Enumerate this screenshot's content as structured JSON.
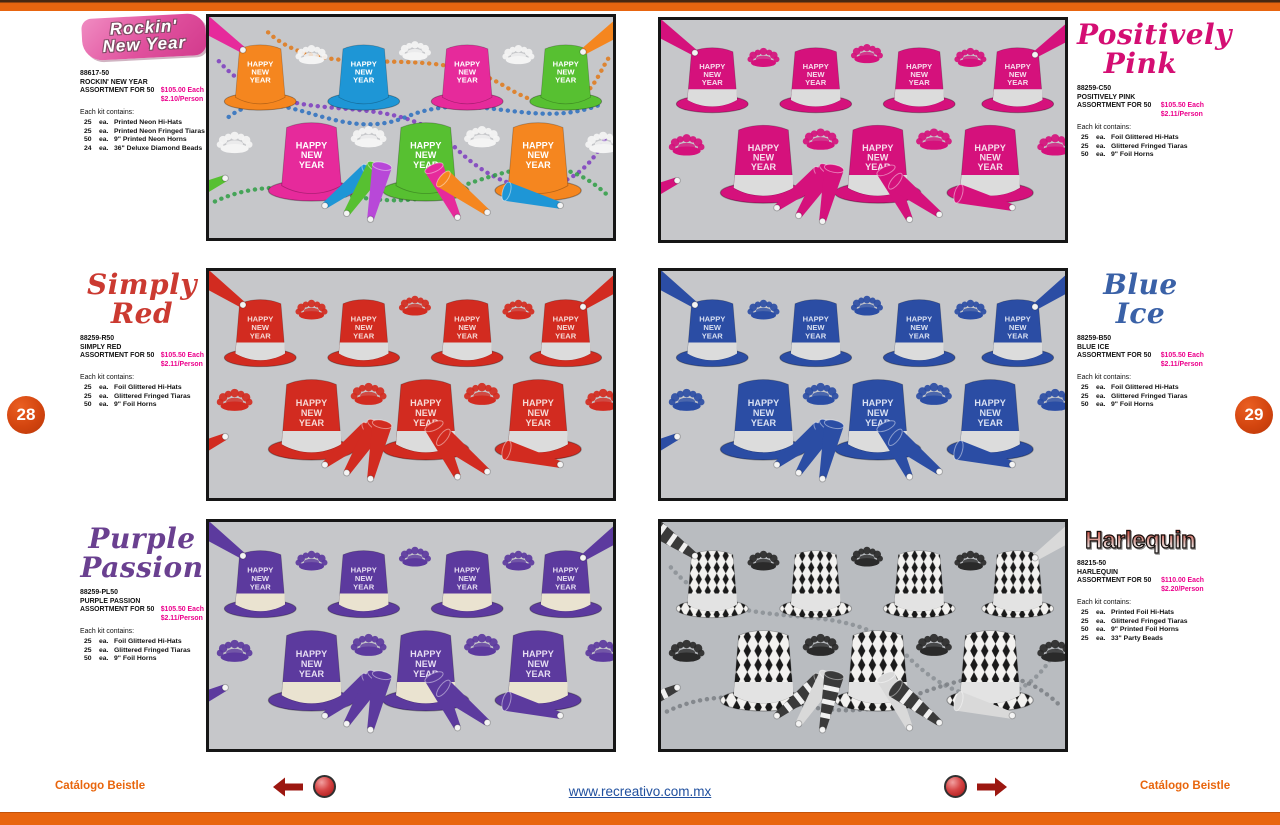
{
  "page": {
    "accent_orange": "#e8650f",
    "price_color": "#ec008c",
    "left_page_number": "28",
    "right_page_number": "29"
  },
  "footer": {
    "left_label": "Catálogo Beistle",
    "right_label": "Catálogo Beistle",
    "url": "www.recreativo.com.mx"
  },
  "kits": [
    {
      "id": "rockin-new-year",
      "title_lines": [
        "Rockin'",
        "New Year"
      ],
      "title_color": "#e0509d",
      "code": "88617-50",
      "name": "ROCKIN' NEW YEAR",
      "assortment": "ASSORTMENT FOR 50",
      "price_each": "$105.00 Each",
      "price_person": "$2.10/Person",
      "contains_label": "Each kit contains:",
      "items": [
        {
          "qty": "25",
          "unit": "ea.",
          "desc": "Printed Neon Hi-Hats"
        },
        {
          "qty": "25",
          "unit": "ea.",
          "desc": "Printed Neon Fringed Tiaras"
        },
        {
          "qty": "50",
          "unit": "ea.",
          "desc": "9\" Printed Neon Horns"
        },
        {
          "qty": "24",
          "unit": "ea.",
          "desc": "36\" Deluxe Diamond Beads"
        }
      ],
      "photo": {
        "bg": "#c6c7ca",
        "hat_colors": [
          "#f5861f",
          "#1e96d6",
          "#e62a9b",
          "#57c031",
          "#e62a9b",
          "#57c031",
          "#f5861f"
        ],
        "band_color": "",
        "hat_text_color": "#ffffff",
        "tiara_color": "#f4f4f4",
        "horn_colors": [
          "#e62a9b",
          "#f5861f",
          "#1e96d6",
          "#57c031",
          "#b848d8"
        ],
        "bead_colors": [
          "#7d3bbf",
          "#2e9e44",
          "#e07818",
          "#2a6fc0"
        ],
        "pattern": "solid"
      }
    },
    {
      "id": "positively-pink",
      "title_lines": [
        "Positively",
        "Pink"
      ],
      "title_color": "#d40e73",
      "code": "88259-C50",
      "name": "POSITIVELY PINK",
      "assortment": "ASSORTMENT FOR 50",
      "price_each": "$105.50 Each",
      "price_person": "$2.11/Person",
      "contains_label": "Each kit contains:",
      "items": [
        {
          "qty": "25",
          "unit": "ea.",
          "desc": "Foil Glittered Hi-Hats"
        },
        {
          "qty": "25",
          "unit": "ea.",
          "desc": "Glittered Fringed Tiaras"
        },
        {
          "qty": "50",
          "unit": "ea.",
          "desc": "9\" Foil Horns"
        }
      ],
      "photo": {
        "bg": "#c6c7ca",
        "hat_colors": [
          "#d5117c",
          "#d5117c",
          "#d5117c",
          "#d5117c",
          "#d5117c",
          "#d5117c",
          "#d5117c"
        ],
        "band_color": "#dcdcdc",
        "hat_text_color": "#f7dcec",
        "tiara_color": "#d5117c",
        "horn_colors": [
          "#d5117c"
        ],
        "bead_colors": [],
        "pattern": "solid"
      }
    },
    {
      "id": "simply-red",
      "title_lines": [
        "Simply",
        "Red"
      ],
      "title_color": "#cb3a31",
      "code": "88259-R50",
      "name": "SIMPLY RED",
      "assortment": "ASSORTMENT FOR 50",
      "price_each": "$105.50 Each",
      "price_person": "$2.11/Person",
      "contains_label": "Each kit contains:",
      "items": [
        {
          "qty": "25",
          "unit": "ea.",
          "desc": "Foil Glittered Hi-Hats"
        },
        {
          "qty": "25",
          "unit": "ea.",
          "desc": "Glittered Fringed Tiaras"
        },
        {
          "qty": "50",
          "unit": "ea.",
          "desc": "9\" Foil Horns"
        }
      ],
      "photo": {
        "bg": "#c6c7ca",
        "hat_colors": [
          "#d22b20",
          "#d22b20",
          "#d22b20",
          "#d22b20",
          "#d22b20",
          "#d22b20",
          "#d22b20"
        ],
        "band_color": "#dcdcdc",
        "hat_text_color": "#f6d9d5",
        "tiara_color": "#d22b20",
        "horn_colors": [
          "#d22b20"
        ],
        "bead_colors": [],
        "pattern": "solid"
      }
    },
    {
      "id": "blue-ice",
      "title_lines": [
        "Blue",
        "Ice"
      ],
      "title_color": "#3a61a7",
      "code": "88259-B50",
      "name": "BLUE ICE",
      "assortment": "ASSORTMENT FOR 50",
      "price_each": "$105.50 Each",
      "price_person": "$2.11/Person",
      "contains_label": "Each kit contains:",
      "items": [
        {
          "qty": "25",
          "unit": "ea.",
          "desc": "Foil Glittered Hi-Hats"
        },
        {
          "qty": "25",
          "unit": "ea.",
          "desc": "Glittered Fringed Tiaras"
        },
        {
          "qty": "50",
          "unit": "ea.",
          "desc": "9\" Foil Horns"
        }
      ],
      "photo": {
        "bg": "#c6c7ca",
        "hat_colors": [
          "#2b4da4",
          "#2b4da4",
          "#2b4da4",
          "#2b4da4",
          "#2b4da4",
          "#2b4da4",
          "#2b4da4"
        ],
        "band_color": "#dcdcdc",
        "hat_text_color": "#d8e0f2",
        "tiara_color": "#2b4da4",
        "horn_colors": [
          "#2b4da4"
        ],
        "bead_colors": [],
        "pattern": "solid"
      }
    },
    {
      "id": "purple-passion",
      "title_lines": [
        "Purple",
        "Passion"
      ],
      "title_color": "#6a4090",
      "code": "88259-PL50",
      "name": "PURPLE PASSION",
      "assortment": "ASSORTMENT FOR 50",
      "price_each": "$105.50 Each",
      "price_person": "$2.11/Person",
      "contains_label": "Each kit contains:",
      "items": [
        {
          "qty": "25",
          "unit": "ea.",
          "desc": "Foil Glittered Hi-Hats"
        },
        {
          "qty": "25",
          "unit": "ea.",
          "desc": "Glittered Fringed Tiaras"
        },
        {
          "qty": "50",
          "unit": "ea.",
          "desc": "9\" Foil Horns"
        }
      ],
      "photo": {
        "bg": "#c6c7ca",
        "hat_colors": [
          "#5c3a9e",
          "#5c3a9e",
          "#5c3a9e",
          "#5c3a9e",
          "#5c3a9e",
          "#5c3a9e",
          "#5c3a9e"
        ],
        "band_color": "#eae3d0",
        "hat_text_color": "#e6ddf2",
        "tiara_color": "#5c3a9e",
        "horn_colors": [
          "#5c3a9e"
        ],
        "bead_colors": [],
        "pattern": "solid"
      }
    },
    {
      "id": "harlequin",
      "title_lines": [
        "Harlequin"
      ],
      "title_color": "#c03224",
      "code": "88215-50",
      "name": "HARLEQUIN",
      "assortment": "ASSORTMENT FOR 50",
      "price_each": "$110.00 Each",
      "price_person": "$2.20/Person",
      "contains_label": "Each kit contains:",
      "items": [
        {
          "qty": "25",
          "unit": "ea.",
          "desc": "Printed Foil Hi-Hats"
        },
        {
          "qty": "25",
          "unit": "ea.",
          "desc": "Glittered Fringed Tiaras"
        },
        {
          "qty": "50",
          "unit": "ea.",
          "desc": "9\" Printed Foil Horns"
        },
        {
          "qty": "25",
          "unit": "ea.",
          "desc": "33\" Party Beads"
        }
      ],
      "photo": {
        "bg": "#b9bcc0",
        "hat_colors": [
          "#f2f1ef",
          "#f2f1ef",
          "#f2f1ef",
          "#f2f1ef",
          "#f2f1ef",
          "#f2f1ef",
          "#f2f1ef"
        ],
        "band_color": "#e3e3e3",
        "hat_text_color": "",
        "tiara_color": "#2a2a2a",
        "horn_colors": [
          "#3a3a3a",
          "#d9d9d9"
        ],
        "bead_colors": [
          "#8a8f94",
          "#7a7f84"
        ],
        "pattern": "diamond"
      }
    }
  ]
}
